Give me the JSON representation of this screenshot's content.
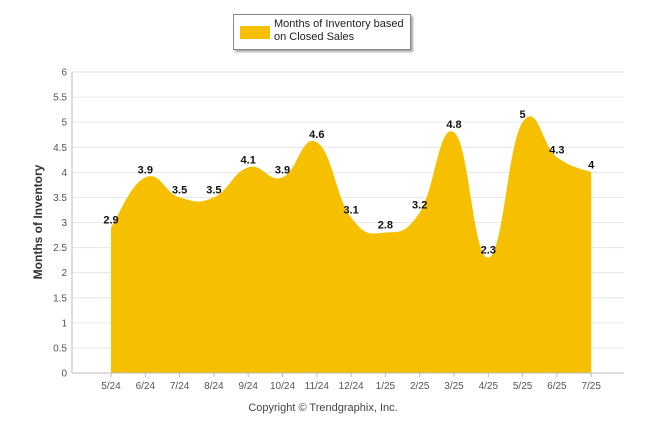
{
  "copyright": "Copyright © Trendgraphix, Inc.",
  "colors": {
    "fill": "#f6c000",
    "grid": "#e6e6e6",
    "axis": "#bbbbbb",
    "tick_text": "#555555",
    "label_text": "#111111"
  },
  "chart_data": {
    "type": "area",
    "categories": [
      "5/24",
      "6/24",
      "7/24",
      "8/24",
      "9/24",
      "10/24",
      "11/24",
      "12/24",
      "1/25",
      "2/25",
      "3/25",
      "4/25",
      "5/25",
      "6/25",
      "7/25"
    ],
    "series": [
      {
        "name": "Months of Inventory based on Closed Sales",
        "values": [
          2.9,
          3.9,
          3.5,
          3.5,
          4.1,
          3.9,
          4.6,
          3.1,
          2.8,
          3.2,
          4.8,
          2.3,
          5,
          4.3,
          4
        ]
      }
    ],
    "data_labels": [
      "2.9",
      "3.9",
      "3.5",
      "3.5",
      "4.1",
      "3.9",
      "4.6",
      "3.1",
      "2.8",
      "3.2",
      "4.8",
      "2.3",
      "5",
      "4.3",
      "4"
    ],
    "ylabel": "Months of Inventory",
    "xlabel": "",
    "ylim": [
      0,
      6
    ],
    "yticks": [
      "0",
      "0.5",
      "1",
      "1.5",
      "2",
      "2.5",
      "3",
      "3.5",
      "4",
      "4.5",
      "5",
      "5.5",
      "6"
    ],
    "grid": true,
    "legend_position": "top-center"
  }
}
